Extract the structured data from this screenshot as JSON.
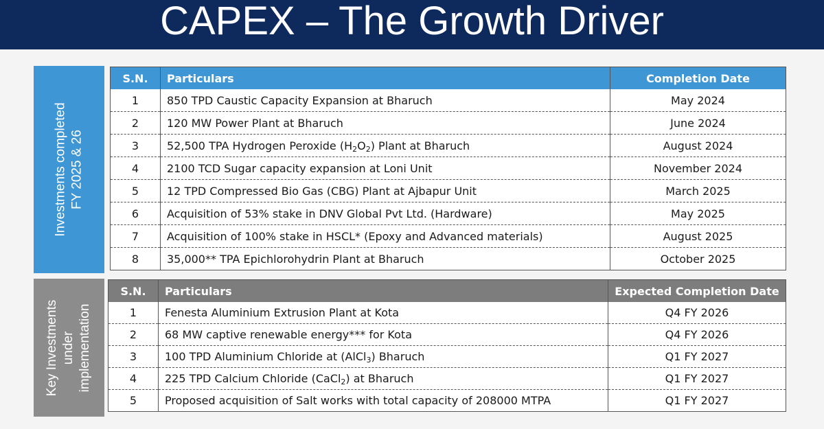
{
  "slide": {
    "title": "CAPEX – The Growth Driver"
  },
  "completed": {
    "side_label_line1": "Investments completed",
    "side_label_line2": "FY 2025 & 26",
    "headers": {
      "sn": "S.N.",
      "particulars": "Particulars",
      "date": "Completion Date"
    },
    "rows": [
      {
        "sn": "1",
        "particulars": "850 TPD Caustic Capacity Expansion at Bharuch",
        "date": "May 2024"
      },
      {
        "sn": "2",
        "particulars": "120 MW Power Plant at Bharuch",
        "date": "June 2024"
      },
      {
        "sn": "3",
        "particulars_pre": "52,500 TPA Hydrogen Peroxide (H",
        "sub1": "2",
        "particulars_mid": "O",
        "sub2": "2",
        "particulars_post": ") Plant at Bharuch",
        "date": "August 2024"
      },
      {
        "sn": "4",
        "particulars": "2100 TCD Sugar capacity expansion at Loni Unit",
        "date": "November 2024"
      },
      {
        "sn": "5",
        "particulars": "12 TPD Compressed Bio Gas (CBG) Plant at Ajbapur Unit",
        "date": "March 2025"
      },
      {
        "sn": "6",
        "particulars": "Acquisition of 53% stake in DNV Global Pvt Ltd. (Hardware)",
        "date": "May 2025"
      },
      {
        "sn": "7",
        "particulars": "Acquisition of 100% stake in HSCL* (Epoxy and Advanced materials)",
        "date": "August 2025"
      },
      {
        "sn": "8",
        "particulars": "35,000** TPA Epichlorohydrin Plant at Bharuch",
        "date": "October 2025"
      }
    ]
  },
  "implementation": {
    "side_label_line1": "Key Investments",
    "side_label_line2": "under",
    "side_label_line3": "implementation",
    "headers": {
      "sn": "S.N.",
      "particulars": "Particulars",
      "date": "Expected Completion Date"
    },
    "rows": [
      {
        "sn": "1",
        "particulars": "Fenesta Aluminium Extrusion Plant at Kota",
        "date": "Q4 FY 2026"
      },
      {
        "sn": "2",
        "particulars": "68 MW captive renewable energy*** for Kota",
        "date": "Q4 FY 2026"
      },
      {
        "sn": "3",
        "particulars_pre": "100 TPD Aluminium Chloride at (AlCl",
        "sub1": "3",
        "particulars_post": ") Bharuch",
        "date": "Q1 FY 2027"
      },
      {
        "sn": "4",
        "particulars_pre": "225 TPD Calcium Chloride (CaCl",
        "sub1": "2",
        "particulars_post": ") at Bharuch",
        "date": "Q1 FY 2027"
      },
      {
        "sn": "5",
        "particulars": "Proposed acquisition of Salt works with total capacity of 208000 MTPA",
        "date": "Q1 FY 2027"
      }
    ]
  }
}
